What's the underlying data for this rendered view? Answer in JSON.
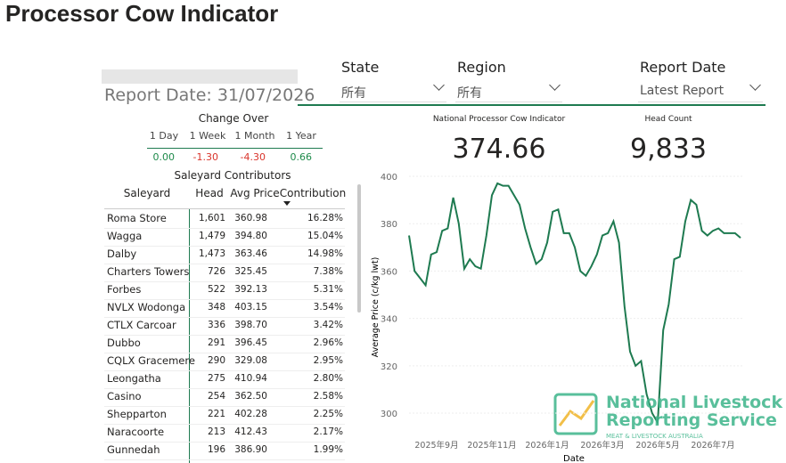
{
  "header": {
    "title": "Processor Cow Indicator"
  },
  "report_date": "Report Date: 31/07/2026",
  "filters": [
    {
      "label": "State",
      "value": "所有"
    },
    {
      "label": "Region",
      "value": "所有"
    },
    {
      "label": "Report Date",
      "value": "Latest Report"
    }
  ],
  "change_over": {
    "title": "Change Over",
    "columns": [
      "1 Day",
      "1 Week",
      "1 Month",
      "1 Year"
    ],
    "values": [
      "0.00",
      "-1.30",
      "-4.30",
      "0.66"
    ]
  },
  "kpis": [
    {
      "label": "National Processor Cow Indicator",
      "value": "374.66"
    },
    {
      "label": "Head Count",
      "value": "9,833"
    }
  ],
  "table": {
    "title": "Saleyard Contributors",
    "columns": [
      "Saleyard",
      "Head",
      "Avg Price",
      "Contribution"
    ],
    "rows": [
      [
        "Roma Store",
        "1,601",
        "360.98",
        "16.28%"
      ],
      [
        "Wagga",
        "1,479",
        "394.80",
        "15.04%"
      ],
      [
        "Dalby",
        "1,473",
        "363.46",
        "14.98%"
      ],
      [
        "Charters Towers",
        "726",
        "325.45",
        "7.38%"
      ],
      [
        "Forbes",
        "522",
        "392.13",
        "5.31%"
      ],
      [
        "NVLX Wodonga",
        "348",
        "403.15",
        "3.54%"
      ],
      [
        "CTLX Carcoar",
        "336",
        "398.70",
        "3.42%"
      ],
      [
        "Dubbo",
        "291",
        "396.45",
        "2.96%"
      ],
      [
        "CQLX Gracemere",
        "290",
        "329.08",
        "2.95%"
      ],
      [
        "Leongatha",
        "275",
        "410.94",
        "2.80%"
      ],
      [
        "Casino",
        "254",
        "362.50",
        "2.58%"
      ],
      [
        "Shepparton",
        "221",
        "402.28",
        "2.25%"
      ],
      [
        "Naracoorte",
        "213",
        "412.43",
        "2.17%"
      ],
      [
        "Gunnedah",
        "196",
        "386.90",
        "1.99%"
      ]
    ]
  },
  "logo": {
    "line1": "National Livestock",
    "line2": "Reporting Service",
    "line3": "MEAT & LIVESTOCK AUSTRALIA"
  },
  "chart_data": {
    "type": "line",
    "x_label": "Date",
    "y_label": "Average Price (c/kg lwt)",
    "color": "#1e7a50",
    "categories": [
      null,
      null,
      null,
      null,
      null,
      "2025年9月",
      null,
      null,
      null,
      null,
      null,
      null,
      null,
      null,
      null,
      "2025年11月",
      null,
      null,
      null,
      null,
      null,
      null,
      null,
      null,
      null,
      "2026年1月",
      null,
      null,
      null,
      null,
      null,
      null,
      null,
      null,
      null,
      "2026年3月",
      null,
      null,
      null,
      null,
      null,
      null,
      null,
      null,
      null,
      "2026年5月",
      null,
      null,
      null,
      null,
      null,
      null,
      null,
      null,
      null,
      "2026年7月",
      null,
      null,
      null,
      null,
      null
    ],
    "values": [
      375,
      360,
      357,
      354,
      367,
      368,
      377,
      378,
      391,
      380,
      361,
      365,
      362,
      361,
      375,
      392,
      397,
      396,
      396,
      392,
      388,
      378,
      370,
      363,
      365,
      372,
      385,
      386,
      376,
      376,
      370,
      360,
      358,
      362,
      367,
      375,
      376,
      381,
      372,
      345,
      326,
      320,
      322,
      308,
      300,
      296,
      335,
      346,
      365,
      366,
      381,
      390,
      388,
      377,
      375,
      377,
      378,
      376,
      376,
      376,
      374
    ],
    "ylim": [
      294,
      403
    ],
    "yticks": [
      300,
      320,
      340,
      360,
      380,
      400
    ],
    "grid": true
  }
}
